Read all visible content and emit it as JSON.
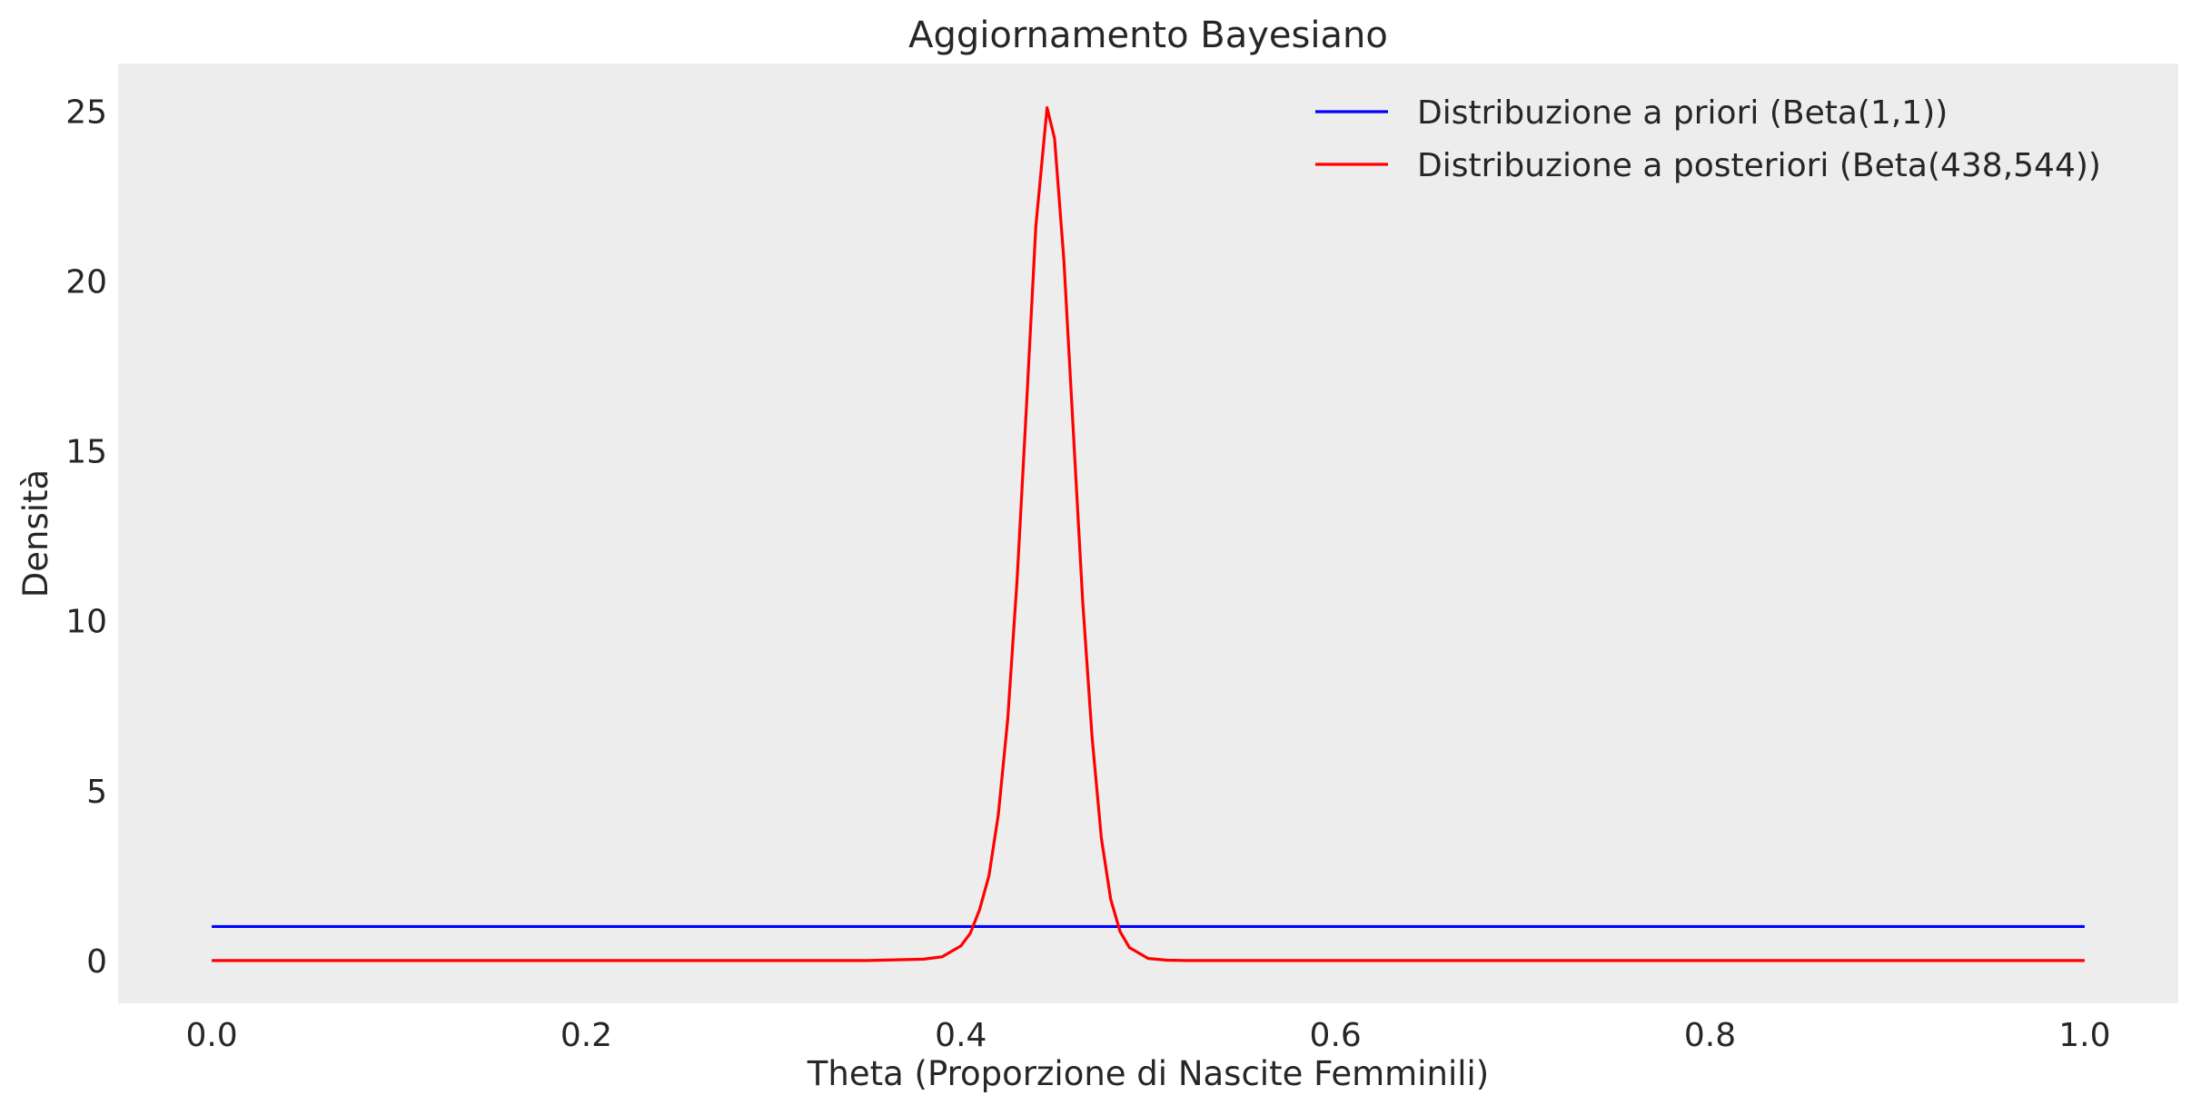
{
  "chart_data": {
    "type": "line",
    "title": "Aggiornamento Bayesiano",
    "xlabel": "Theta (Proporzione di Nascite Femminili)",
    "ylabel": "Densità",
    "xlim": [
      -0.05,
      1.05
    ],
    "ylim": [
      -1.26,
      26.4
    ],
    "x_ticks": [
      0.0,
      0.2,
      0.4,
      0.6,
      0.8,
      1.0
    ],
    "x_tick_labels": [
      "0.0",
      "0.2",
      "0.4",
      "0.6",
      "0.8",
      "1.0"
    ],
    "y_ticks": [
      0,
      5,
      10,
      15,
      20,
      25
    ],
    "y_tick_labels": [
      "0",
      "5",
      "10",
      "15",
      "20",
      "25"
    ],
    "grid": false,
    "legend_position": "top-right",
    "background_color": "#ededed",
    "series": [
      {
        "name": "Distribuzione a priori (Beta(1,1))",
        "color": "#0000ff",
        "x": [
          0.0,
          1.0
        ],
        "y": [
          1.0,
          1.0
        ]
      },
      {
        "name": "Distribuzione a posteriori (Beta(438,544))",
        "color": "#ff0000",
        "x": [
          0.0,
          0.35,
          0.38,
          0.39,
          0.4,
          0.405,
          0.41,
          0.415,
          0.42,
          0.425,
          0.43,
          0.435,
          0.44,
          0.446,
          0.45,
          0.455,
          0.46,
          0.465,
          0.47,
          0.475,
          0.48,
          0.485,
          0.49,
          0.5,
          0.51,
          0.52,
          0.55,
          1.0
        ],
        "y": [
          0.0,
          0.0,
          0.04,
          0.11,
          0.43,
          0.8,
          1.5,
          2.5,
          4.3,
          7.1,
          11.2,
          16.3,
          21.6,
          25.1,
          24.2,
          20.6,
          15.6,
          10.6,
          6.6,
          3.6,
          1.8,
          0.85,
          0.38,
          0.06,
          0.01,
          0.0,
          0.0,
          0.0
        ]
      }
    ]
  }
}
